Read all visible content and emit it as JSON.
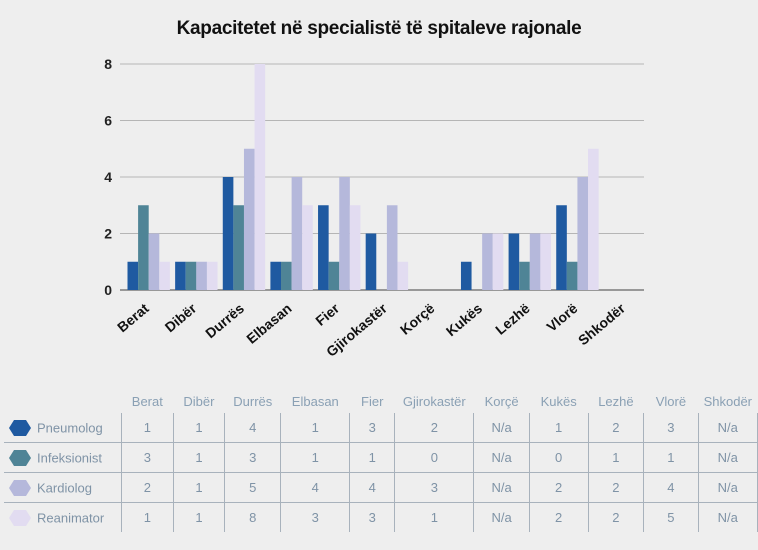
{
  "chart_data": {
    "type": "bar",
    "title": "Kapacitetet në specialistë të spitaleve rajonale",
    "categories": [
      "Berat",
      "Dibër",
      "Durrës",
      "Elbasan",
      "Fier",
      "Gjirokastër",
      "Korçë",
      "Kukës",
      "Lezhë",
      "Vlorë",
      "Shkodër"
    ],
    "ylim": [
      0,
      8
    ],
    "yticks": [
      0,
      2,
      4,
      6,
      8
    ],
    "xlabel": "",
    "ylabel": "",
    "grid": true,
    "series": [
      {
        "name": "Pneumolog",
        "color": "#1f5aa1",
        "values": [
          1,
          1,
          4,
          1,
          3,
          2,
          null,
          1,
          2,
          3,
          null
        ],
        "table": [
          "1",
          "1",
          "4",
          "1",
          "3",
          "2",
          "N/a",
          "1",
          "2",
          "3",
          "N/a"
        ]
      },
      {
        "name": "Infeksionist",
        "color": "#4f8496",
        "values": [
          3,
          1,
          3,
          1,
          1,
          0,
          null,
          0,
          1,
          1,
          null
        ],
        "table": [
          "3",
          "1",
          "3",
          "1",
          "1",
          "0",
          "N/a",
          "0",
          "1",
          "1",
          "N/a"
        ]
      },
      {
        "name": "Kardiolog",
        "color": "#b5b8db",
        "values": [
          2,
          1,
          5,
          4,
          4,
          3,
          null,
          2,
          2,
          4,
          null
        ],
        "table": [
          "2",
          "1",
          "5",
          "4",
          "4",
          "3",
          "N/a",
          "2",
          "2",
          "4",
          "N/a"
        ]
      },
      {
        "name": "Reanimator",
        "color": "#e2dcf1",
        "values": [
          1,
          1,
          8,
          3,
          3,
          1,
          null,
          2,
          2,
          5,
          null
        ],
        "table": [
          "1",
          "1",
          "8",
          "3",
          "3",
          "1",
          "N/a",
          "2",
          "2",
          "5",
          "N/a"
        ]
      }
    ]
  }
}
